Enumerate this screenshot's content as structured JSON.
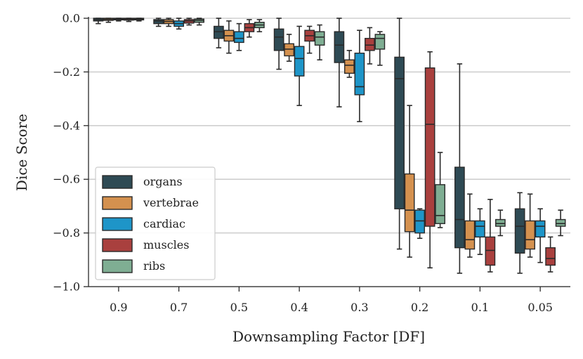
{
  "chart_data": {
    "type": "box",
    "title": "",
    "xlabel": "Downsampling Factor [DF]",
    "ylabel": "Dice Score",
    "ylim": [
      -1.0,
      0.0
    ],
    "yticks": [
      {
        "value": 0.0,
        "label": "0.0"
      },
      {
        "value": -0.2,
        "label": "−0.2"
      },
      {
        "value": -0.4,
        "label": "−0.4"
      },
      {
        "value": -0.6,
        "label": "−0.6"
      },
      {
        "value": -0.8,
        "label": "−0.8"
      },
      {
        "value": -1.0,
        "label": "−1.0"
      }
    ],
    "grid": "horizontal",
    "legend_position": "lower-left",
    "categories": [
      "0.9",
      "0.7",
      "0.5",
      "0.4",
      "0.3",
      "0.2",
      "0.1",
      "0.05"
    ],
    "series": [
      {
        "name": "organs",
        "color": "#2e4a54",
        "boxes": [
          {
            "whislo": -0.02,
            "q1": -0.01,
            "med": -0.005,
            "q3": 0.0,
            "whishi": 0.0
          },
          {
            "whislo": -0.03,
            "q1": -0.02,
            "med": -0.01,
            "q3": -0.005,
            "whishi": 0.0
          },
          {
            "whislo": -0.11,
            "q1": -0.075,
            "med": -0.05,
            "q3": -0.03,
            "whishi": 0.0
          },
          {
            "whislo": -0.19,
            "q1": -0.12,
            "med": -0.07,
            "q3": -0.04,
            "whishi": 0.0
          },
          {
            "whislo": -0.33,
            "q1": -0.165,
            "med": -0.1,
            "q3": -0.05,
            "whishi": 0.0
          },
          {
            "whislo": -0.86,
            "q1": -0.71,
            "med": -0.225,
            "q3": -0.145,
            "whishi": 0.0
          },
          {
            "whislo": -0.95,
            "q1": -0.855,
            "med": -0.75,
            "q3": -0.555,
            "whishi": -0.17
          },
          {
            "whislo": -0.95,
            "q1": -0.875,
            "med": -0.775,
            "q3": -0.71,
            "whishi": -0.65
          }
        ]
      },
      {
        "name": "vertebrae",
        "color": "#d4914f",
        "boxes": [
          {
            "whislo": -0.015,
            "q1": -0.008,
            "med": -0.004,
            "q3": 0.0,
            "whishi": 0.0
          },
          {
            "whislo": -0.03,
            "q1": -0.02,
            "med": -0.012,
            "q3": -0.005,
            "whishi": 0.0
          },
          {
            "whislo": -0.13,
            "q1": -0.085,
            "med": -0.065,
            "q3": -0.045,
            "whishi": -0.01
          },
          {
            "whislo": -0.16,
            "q1": -0.14,
            "med": -0.115,
            "q3": -0.095,
            "whishi": -0.06
          },
          {
            "whislo": -0.22,
            "q1": -0.205,
            "med": -0.175,
            "q3": -0.155,
            "whishi": -0.12
          },
          {
            "whislo": -0.89,
            "q1": -0.795,
            "med": -0.715,
            "q3": -0.58,
            "whishi": -0.325
          },
          {
            "whislo": -0.89,
            "q1": -0.86,
            "med": -0.825,
            "q3": -0.755,
            "whishi": -0.655
          },
          {
            "whislo": -0.89,
            "q1": -0.86,
            "med": -0.825,
            "q3": -0.755,
            "whishi": -0.655
          }
        ]
      },
      {
        "name": "cardiac",
        "color": "#1e95c8",
        "boxes": [
          {
            "whislo": -0.01,
            "q1": -0.006,
            "med": -0.003,
            "q3": 0.0,
            "whishi": 0.0
          },
          {
            "whislo": -0.04,
            "q1": -0.03,
            "med": -0.02,
            "q3": -0.01,
            "whishi": 0.0
          },
          {
            "whislo": -0.12,
            "q1": -0.09,
            "med": -0.075,
            "q3": -0.05,
            "whishi": -0.02
          },
          {
            "whislo": -0.325,
            "q1": -0.215,
            "med": -0.15,
            "q3": -0.105,
            "whishi": -0.03
          },
          {
            "whislo": -0.385,
            "q1": -0.285,
            "med": -0.255,
            "q3": -0.13,
            "whishi": -0.045
          },
          {
            "whislo": -0.82,
            "q1": -0.8,
            "med": -0.755,
            "q3": -0.715,
            "whishi": -0.71
          },
          {
            "whislo": -0.88,
            "q1": -0.815,
            "med": -0.775,
            "q3": -0.755,
            "whishi": -0.71
          },
          {
            "whislo": -0.91,
            "q1": -0.815,
            "med": -0.775,
            "q3": -0.755,
            "whishi": -0.71
          }
        ]
      },
      {
        "name": "muscles",
        "color": "#a9403e",
        "boxes": [
          {
            "whislo": -0.012,
            "q1": -0.007,
            "med": -0.003,
            "q3": 0.0,
            "whishi": 0.0
          },
          {
            "whislo": -0.025,
            "q1": -0.018,
            "med": -0.01,
            "q3": -0.005,
            "whishi": 0.0
          },
          {
            "whislo": -0.07,
            "q1": -0.05,
            "med": -0.035,
            "q3": -0.02,
            "whishi": -0.005
          },
          {
            "whislo": -0.13,
            "q1": -0.085,
            "med": -0.065,
            "q3": -0.045,
            "whishi": -0.03
          },
          {
            "whislo": -0.17,
            "q1": -0.12,
            "med": -0.1,
            "q3": -0.075,
            "whishi": -0.035
          },
          {
            "whislo": -0.93,
            "q1": -0.775,
            "med": -0.395,
            "q3": -0.185,
            "whishi": -0.125
          },
          {
            "whislo": -0.945,
            "q1": -0.92,
            "med": -0.865,
            "q3": -0.815,
            "whishi": -0.675
          },
          {
            "whislo": -0.945,
            "q1": -0.92,
            "med": -0.895,
            "q3": -0.855,
            "whishi": -0.815
          }
        ]
      },
      {
        "name": "ribs",
        "color": "#7fae93",
        "boxes": [
          {
            "whislo": -0.01,
            "q1": -0.006,
            "med": -0.003,
            "q3": 0.0,
            "whishi": 0.0
          },
          {
            "whislo": -0.025,
            "q1": -0.015,
            "med": -0.008,
            "q3": -0.003,
            "whishi": 0.0
          },
          {
            "whislo": -0.05,
            "q1": -0.035,
            "med": -0.025,
            "q3": -0.015,
            "whishi": -0.005
          },
          {
            "whislo": -0.155,
            "q1": -0.1,
            "med": -0.07,
            "q3": -0.05,
            "whishi": -0.025
          },
          {
            "whislo": -0.175,
            "q1": -0.115,
            "med": -0.075,
            "q3": -0.06,
            "whishi": -0.05
          },
          {
            "whislo": -0.78,
            "q1": -0.765,
            "med": -0.735,
            "q3": -0.62,
            "whishi": -0.5
          },
          {
            "whislo": -0.81,
            "q1": -0.775,
            "med": -0.765,
            "q3": -0.75,
            "whishi": -0.715
          },
          {
            "whislo": -0.81,
            "q1": -0.775,
            "med": -0.765,
            "q3": -0.75,
            "whishi": -0.715
          }
        ]
      }
    ]
  }
}
